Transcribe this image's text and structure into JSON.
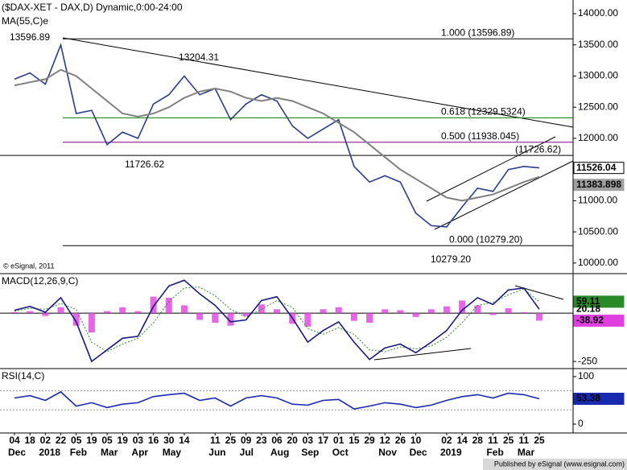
{
  "chart_data": [
    {
      "type": "line",
      "title": "($DAX-XET - DAX,D) Dynamic,0:00-24:00",
      "ylim": [
        9830,
        14220
      ],
      "yticks": [
        {
          "value": 10000,
          "label": "10000.00"
        },
        {
          "value": 10500,
          "label": "10500.00"
        },
        {
          "value": 11000,
          "label": "11000.00"
        },
        {
          "value": 11500,
          "label": "11500.00"
        },
        {
          "value": 12000,
          "label": "12000.00"
        },
        {
          "value": 12500,
          "label": "12500.00"
        },
        {
          "value": 13000,
          "label": "13000.00"
        },
        {
          "value": 13500,
          "label": "13500.00"
        },
        {
          "value": 14000,
          "label": "14000.00"
        }
      ],
      "series": [
        {
          "type": "line",
          "color": "#2a3c8c",
          "values": [
            12950,
            13050,
            12870,
            13500,
            12400,
            12450,
            11900,
            12100,
            12000,
            12550,
            12700,
            13000,
            12700,
            12800,
            12300,
            12550,
            12700,
            12600,
            12200,
            12000,
            12150,
            12300,
            11550,
            11300,
            11400,
            11300,
            10800,
            10600,
            10580,
            10900,
            11200,
            11150,
            11500,
            11550,
            11526.04
          ]
        },
        {
          "type": "line",
          "name": "MA(55,C)e",
          "color": "#808080",
          "values": [
            12850,
            12900,
            12950,
            13100,
            13000,
            12800,
            12600,
            12400,
            12350,
            12400,
            12500,
            12650,
            12750,
            12800,
            12750,
            12650,
            12600,
            12650,
            12600,
            12500,
            12400,
            12250,
            12100,
            11900,
            11700,
            11500,
            11350,
            11200,
            11050,
            11000,
            11050,
            11100,
            11200,
            11300,
            11383.898
          ]
        }
      ],
      "levels": [
        {
          "value": 13596.89,
          "label": "1.000 (13596.89)",
          "color": "#000000"
        },
        {
          "value": 12329.5324,
          "label": "0.618 (12329.5324)",
          "color": "#008000"
        },
        {
          "value": 11938.045,
          "label": "0.500 (11938.045)",
          "color": "#800080"
        },
        {
          "value": 11726.62,
          "label": "(11726.62)",
          "color": "#000000"
        },
        {
          "value": 10279.2,
          "label": "0.000 (10279.20)",
          "color": "#000000"
        }
      ],
      "annotations": [
        "13596.89",
        "13204.31",
        "11726.62",
        "10279.20"
      ],
      "source": "© eSignal, 2011"
    },
    {
      "type": "line",
      "title": "MACD(12,26,9,C)",
      "ylim": [
        -287,
        196
      ],
      "yticks": [
        -250
      ],
      "levels": [
        0
      ],
      "series": [
        {
          "type": "bar",
          "color": "#e040e0",
          "values": [
            5,
            10,
            -15,
            30,
            -65,
            -100,
            10,
            30,
            10,
            85,
            80,
            40,
            -35,
            -50,
            -65,
            -15,
            45,
            20,
            -55,
            -70,
            20,
            30,
            -40,
            -50,
            20,
            15,
            -20,
            20,
            35,
            65,
            40,
            -10,
            25,
            5,
            -38.92
          ]
        },
        {
          "type": "line",
          "color": "#2a8a2a",
          "values": [
            10,
            25,
            20,
            50,
            20,
            -150,
            -200,
            -160,
            -130,
            -50,
            60,
            130,
            135,
            90,
            20,
            -20,
            20,
            65,
            30,
            -80,
            -110,
            -75,
            -110,
            -190,
            -200,
            -175,
            -185,
            -170,
            -125,
            -50,
            40,
            55,
            95,
            125,
            59.11
          ]
        },
        {
          "type": "line",
          "color": "#1a1a80",
          "values": [
            15,
            35,
            5,
            80,
            -45,
            -250,
            -190,
            -130,
            -120,
            35,
            140,
            170,
            100,
            40,
            -45,
            -35,
            65,
            85,
            -25,
            -150,
            -90,
            -45,
            -150,
            -240,
            -180,
            -160,
            -205,
            -150,
            -90,
            15,
            80,
            45,
            120,
            130,
            20.18
          ]
        }
      ]
    },
    {
      "type": "line",
      "title": "RSI(14,C)",
      "ylim": [
        -18.6,
        113.5
      ],
      "yticks": [
        0,
        100
      ],
      "levels": [
        30,
        70
      ],
      "series": [
        {
          "type": "line",
          "color": "#1a2ab0",
          "values": [
            55,
            60,
            50,
            68,
            38,
            45,
            35,
            42,
            45,
            58,
            62,
            65,
            50,
            55,
            38,
            55,
            60,
            55,
            42,
            40,
            50,
            52,
            32,
            38,
            45,
            42,
            35,
            40,
            50,
            58,
            62,
            55,
            65,
            62,
            53.38
          ]
        }
      ],
      "categories": [
        "04",
        "18",
        "02",
        "22",
        "05",
        "19",
        "05",
        "19",
        "03",
        "16",
        "30",
        "14",
        null,
        "11",
        "25",
        "09",
        "23",
        "06",
        "20",
        "03",
        "17",
        "01",
        "15",
        "29",
        "12",
        "26",
        "10",
        null,
        "02",
        "14",
        "28",
        "11",
        "25",
        "11",
        "25"
      ],
      "months": [
        "Dec",
        null,
        "2018",
        null,
        "Feb",
        null,
        "Mar",
        null,
        "Apr",
        null,
        "May",
        null,
        null,
        "Jun",
        null,
        "Jul",
        null,
        "Aug",
        null,
        "Sep",
        null,
        "Oct",
        null,
        null,
        "Nov",
        null,
        "Dec",
        null,
        "2019",
        null,
        null,
        "Feb",
        null,
        "Mar",
        null
      ]
    }
  ],
  "footer": "Published by eSignal (www.esignal.com)"
}
